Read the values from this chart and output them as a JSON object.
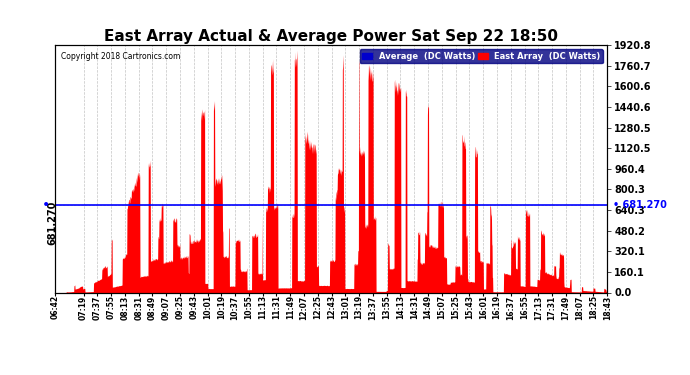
{
  "title": "East Array Actual & Average Power Sat Sep 22 18:50",
  "copyright": "Copyright 2018 Cartronics.com",
  "avg_value": 681.27,
  "avg_label": "681.270",
  "y_max": 1920.8,
  "y_min": 0.0,
  "ytick_values": [
    0.0,
    160.1,
    320.1,
    480.2,
    640.3,
    800.3,
    960.4,
    1120.5,
    1280.5,
    1440.6,
    1600.6,
    1760.7,
    1920.8
  ],
  "background_color": "#ffffff",
  "fill_color": "#ff0000",
  "avg_line_color": "#0000ff",
  "grid_color": "#aaaaaa",
  "title_fontsize": 11,
  "legend_avg_color": "#0000cc",
  "legend_east_color": "#ff0000",
  "xtick_labels": [
    "06:42",
    "07:19",
    "07:37",
    "07:55",
    "08:13",
    "08:31",
    "08:49",
    "09:07",
    "09:25",
    "09:43",
    "10:01",
    "10:19",
    "10:37",
    "10:55",
    "11:13",
    "11:31",
    "11:49",
    "12:07",
    "12:25",
    "12:43",
    "13:01",
    "13:19",
    "13:37",
    "13:55",
    "14:13",
    "14:31",
    "14:49",
    "15:07",
    "15:25",
    "15:43",
    "16:01",
    "16:19",
    "16:37",
    "16:55",
    "17:13",
    "17:31",
    "17:49",
    "18:07",
    "18:25",
    "18:43"
  ]
}
